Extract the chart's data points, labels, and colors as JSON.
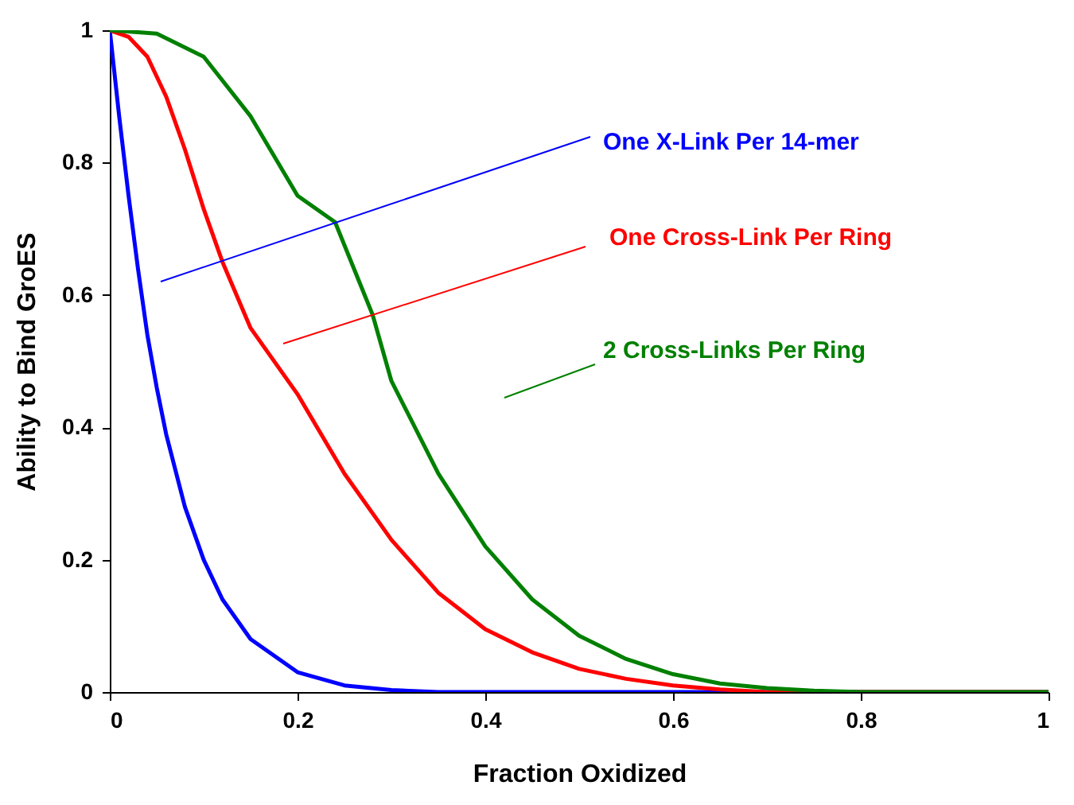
{
  "chart_data": {
    "type": "line",
    "xlabel": "Fraction Oxidized",
    "ylabel": "Ability to Bind GroES",
    "xlim": [
      0,
      1
    ],
    "ylim": [
      0,
      1
    ],
    "xticks": [
      0,
      0.2,
      0.4,
      0.6,
      0.8,
      1
    ],
    "yticks": [
      0,
      0.2,
      0.4,
      0.6,
      0.8,
      1
    ],
    "grid": false,
    "series": [
      {
        "color": "#0000ff",
        "x": [
          0,
          0.01,
          0.02,
          0.03,
          0.04,
          0.05,
          0.06,
          0.08,
          0.1,
          0.12,
          0.15,
          0.2,
          0.25,
          0.3,
          0.35,
          1
        ],
        "values": [
          1,
          0.87,
          0.75,
          0.64,
          0.54,
          0.46,
          0.39,
          0.28,
          0.2,
          0.14,
          0.08,
          0.03,
          0.01,
          0.003,
          0,
          0
        ]
      },
      {
        "color": "#ff0000",
        "x": [
          0,
          0.02,
          0.04,
          0.06,
          0.08,
          0.1,
          0.12,
          0.15,
          0.2,
          0.25,
          0.3,
          0.35,
          0.4,
          0.45,
          0.5,
          0.55,
          0.6,
          0.65,
          0.7,
          1
        ],
        "values": [
          1,
          0.99,
          0.96,
          0.9,
          0.82,
          0.73,
          0.65,
          0.55,
          0.45,
          0.33,
          0.23,
          0.15,
          0.095,
          0.06,
          0.035,
          0.02,
          0.01,
          0.004,
          0,
          0
        ]
      },
      {
        "color": "#008000",
        "x": [
          0,
          0.05,
          0.1,
          0.15,
          0.2,
          0.24,
          0.28,
          0.3,
          0.35,
          0.4,
          0.45,
          0.5,
          0.55,
          0.6,
          0.65,
          0.7,
          0.75,
          0.8,
          1
        ],
        "values": [
          1,
          0.995,
          0.96,
          0.87,
          0.75,
          0.71,
          0.57,
          0.47,
          0.33,
          0.22,
          0.14,
          0.085,
          0.05,
          0.027,
          0.013,
          0.006,
          0.002,
          0,
          0
        ]
      }
    ],
    "annotations": [
      "One X-Link Per 14-mer",
      "One Cross-Link Per Ring",
      "2 Cross-Links Per Ring"
    ]
  }
}
